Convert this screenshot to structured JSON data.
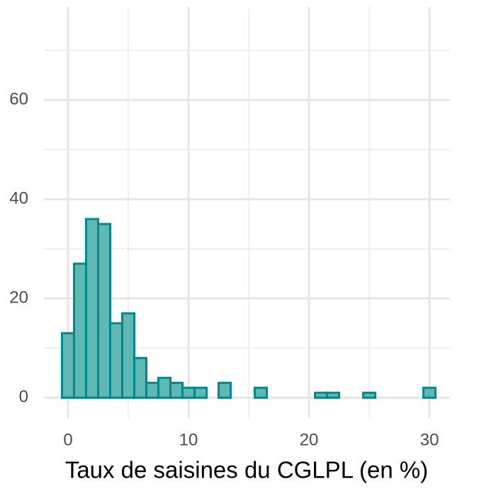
{
  "chart_data": {
    "type": "histogram",
    "x_label": "Taux de saisines du CGLPL (en %)",
    "bins": [
      -0.5,
      0.5,
      1.5,
      2.5,
      3.5,
      4.5,
      5.5,
      6.5,
      7.5,
      8.5,
      9.5,
      10.5,
      11.5,
      12.5,
      13.5,
      14.5,
      15.5,
      16.5,
      17.5,
      18.5,
      19.5,
      20.5,
      21.5,
      22.5,
      23.5,
      24.5,
      25.5,
      26.5,
      27.5,
      28.5,
      29.5,
      30.5
    ],
    "values": [
      13,
      27,
      36,
      35,
      15,
      17,
      8,
      3,
      4,
      3,
      2,
      2,
      0,
      3,
      0,
      0,
      2,
      0,
      0,
      0,
      0,
      1,
      1,
      0,
      0,
      1,
      0,
      0,
      0,
      0,
      2
    ],
    "color": "#5fb8b4",
    "edge_color": "#00898a",
    "xlim": [
      -2,
      31.7
    ],
    "ylim": [
      -4.1,
      78.7
    ],
    "xticks": [
      0,
      10,
      20,
      30
    ],
    "yticks": [
      0,
      20,
      40,
      60
    ],
    "x_minor_ticks": [
      5,
      15,
      25
    ],
    "y_minor_ticks": [
      10,
      30,
      50,
      70
    ],
    "grid": true
  }
}
